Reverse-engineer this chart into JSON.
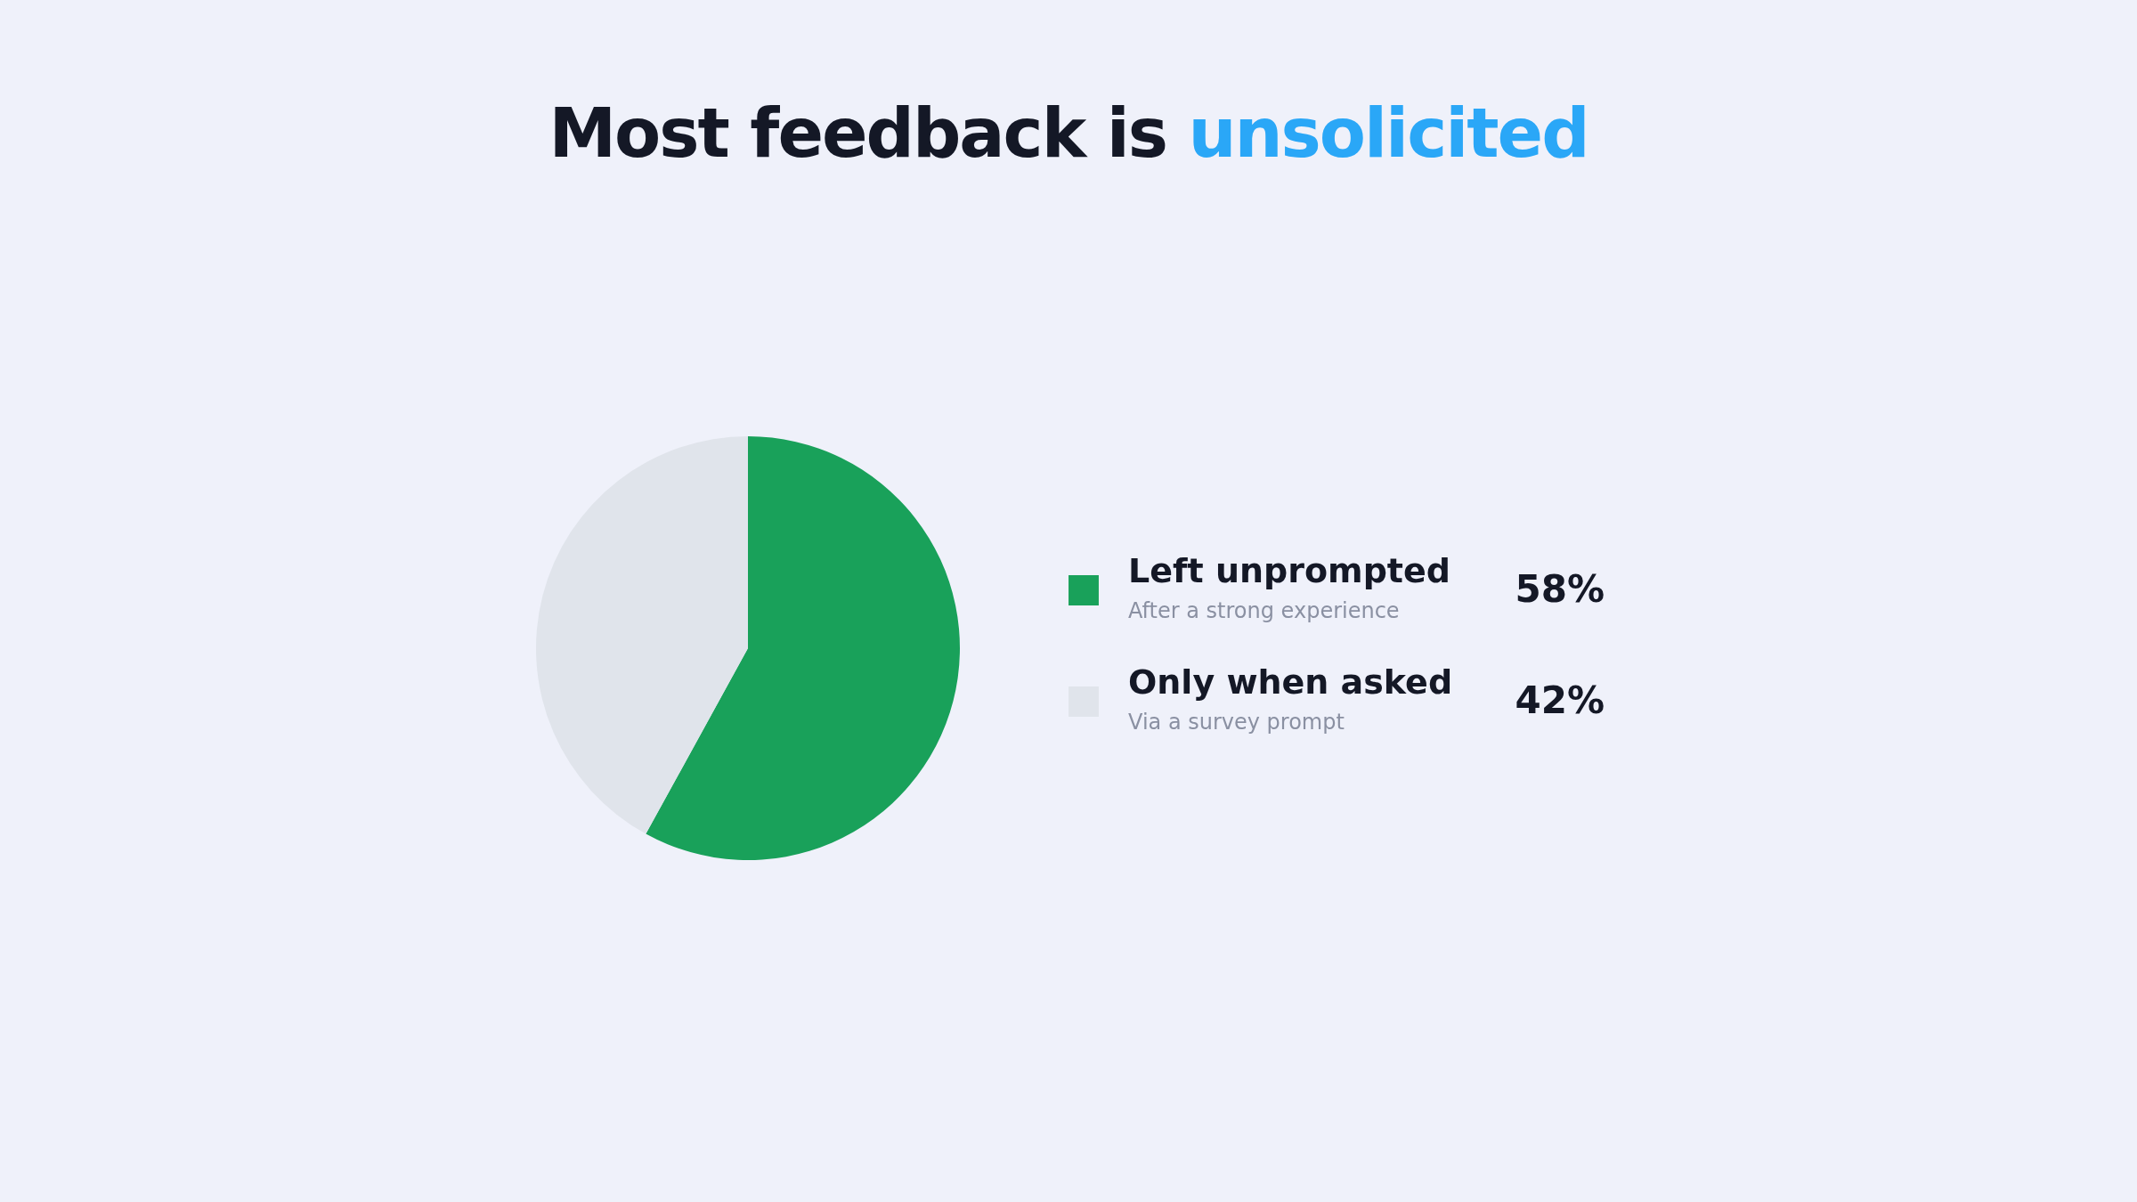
{
  "chart_data": {
    "type": "pie",
    "title": "Most feedback is unsolicited",
    "categories": [
      "Left unprompted",
      "Only when asked"
    ],
    "values": [
      58,
      42
    ],
    "colors": [
      "#19a15a",
      "#e0e4eb"
    ],
    "value_labels": [
      "58%",
      "42%"
    ],
    "annotations": [
      "After a strong experience",
      "Via a survey prompt"
    ],
    "legend": "right"
  }
}
